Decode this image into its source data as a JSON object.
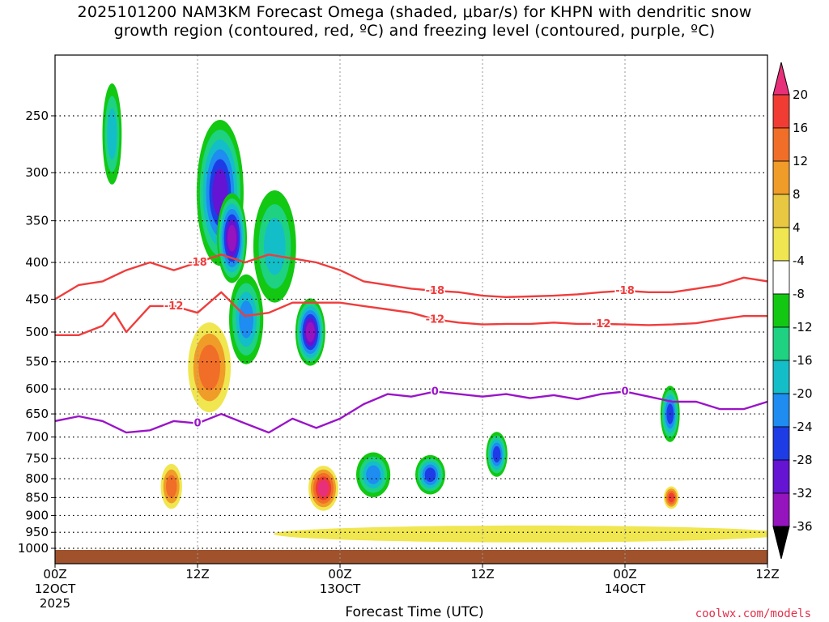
{
  "title_line1": "2025101200 NAM3KM Forecast Omega (shaded, μbar/s) for KHPN with dendritic snow",
  "title_line2": "growth region (contoured, red, ºC) and freezing level (contoured, purple, ºC)",
  "xlabel": "Forecast Time (UTC)",
  "credit": "coolwx.com/models",
  "chart_data": {
    "type": "heatmap",
    "title": "2025101200 NAM3KM Forecast Omega (shaded, μbar/s) for KHPN with dendritic snow growth region (contoured, red, ºC) and freezing level (contoured, purple, ºC)",
    "xlabel": "Forecast Time (UTC)",
    "ylabel": "",
    "x_unit": "forecast hour",
    "xlim": [
      0,
      60
    ],
    "y_unit": "hPa",
    "ylim": [
      1000,
      200
    ],
    "y_scale": "log",
    "x_ticks": [
      {
        "x": 0,
        "label": "00Z",
        "sub": [
          "12OCT",
          "2025"
        ]
      },
      {
        "x": 12,
        "label": "12Z",
        "sub": []
      },
      {
        "x": 24,
        "label": "00Z",
        "sub": [
          "13OCT"
        ]
      },
      {
        "x": 36,
        "label": "12Z",
        "sub": []
      },
      {
        "x": 48,
        "label": "00Z",
        "sub": [
          "14OCT"
        ]
      },
      {
        "x": 60,
        "label": "12Z",
        "sub": []
      }
    ],
    "y_ticks": [
      250,
      300,
      350,
      400,
      450,
      500,
      550,
      600,
      650,
      700,
      750,
      800,
      850,
      900,
      950,
      1000
    ],
    "grid": true,
    "colorbar": {
      "labels": [
        "20",
        "16",
        "12",
        "8",
        "4",
        "-4",
        "-8",
        "-12",
        "-16",
        "-20",
        "-24",
        "-28",
        "-32",
        "-36"
      ],
      "colors": [
        "#e8307a",
        "#f03c32",
        "#f06e28",
        "#f09c28",
        "#e8c840",
        "#f0e650",
        "#ffffff",
        "#12c812",
        "#1ed282",
        "#14bec8",
        "#1e8cf0",
        "#1e3ce6",
        "#6414d2",
        "#9614be",
        "#a0a0a0",
        "#000000"
      ]
    },
    "omega_features": [
      {
        "t": 4.8,
        "p": 265,
        "dt": 0.45,
        "dp_log": 0.09,
        "value": -12
      },
      {
        "t": 13.9,
        "p": 320,
        "dt": 1.1,
        "dp_log": 0.13,
        "value": -24
      },
      {
        "t": 14.9,
        "p": 370,
        "dt": 0.7,
        "dp_log": 0.08,
        "value": -28
      },
      {
        "t": 16.1,
        "p": 480,
        "dt": 0.8,
        "dp_log": 0.08,
        "value": -16
      },
      {
        "t": 21.5,
        "p": 500,
        "dt": 0.7,
        "dp_log": 0.06,
        "value": -28
      },
      {
        "t": 18.5,
        "p": 380,
        "dt": 1.0,
        "dp_log": 0.1,
        "value": -12
      },
      {
        "t": 26.8,
        "p": 790,
        "dt": 0.8,
        "dp_log": 0.04,
        "value": -16
      },
      {
        "t": 31.6,
        "p": 790,
        "dt": 0.7,
        "dp_log": 0.035,
        "value": -20
      },
      {
        "t": 37.2,
        "p": 740,
        "dt": 0.5,
        "dp_log": 0.04,
        "value": -20
      },
      {
        "t": 51.8,
        "p": 650,
        "dt": 0.45,
        "dp_log": 0.05,
        "value": -20
      },
      {
        "t": 9.8,
        "p": 820,
        "dt": 0.5,
        "dp_log": 0.04,
        "value": 12
      },
      {
        "t": 22.6,
        "p": 825,
        "dt": 0.7,
        "dp_log": 0.04,
        "value": 20
      },
      {
        "t": 51.9,
        "p": 850,
        "dt": 0.35,
        "dp_log": 0.02,
        "value": 16
      },
      {
        "t": 13.0,
        "p": 560,
        "dt": 1.0,
        "dp_log": 0.08,
        "value": 12
      },
      {
        "t": 40.0,
        "p": 955,
        "dt": 12.0,
        "dp_log": 0.015,
        "value": 4
      }
    ],
    "series": [
      {
        "name": "-18",
        "color": "#f03c3c",
        "x": [
          0,
          2,
          4,
          6,
          8,
          10,
          12,
          14,
          16,
          18,
          20,
          22,
          24,
          26,
          28,
          30,
          32,
          34,
          36,
          38,
          40,
          42,
          44,
          46,
          48,
          50,
          52,
          54,
          56,
          58,
          60
        ],
        "y": [
          450,
          430,
          425,
          410,
          400,
          410,
          400,
          390,
          400,
          390,
          395,
          400,
          410,
          425,
          430,
          435,
          438,
          440,
          445,
          447,
          446,
          445,
          443,
          440,
          438,
          440,
          440,
          435,
          430,
          420,
          425
        ]
      },
      {
        "name": "-12",
        "color": "#f03c3c",
        "x": [
          0,
          2,
          4,
          5,
          6,
          8,
          10,
          12,
          14,
          16,
          18,
          20,
          22,
          24,
          26,
          28,
          30,
          32,
          34,
          36,
          38,
          40,
          42,
          44,
          46,
          48,
          50,
          52,
          54,
          56,
          58,
          60
        ],
        "y": [
          505,
          505,
          490,
          470,
          500,
          460,
          460,
          470,
          440,
          475,
          470,
          455,
          455,
          455,
          460,
          465,
          470,
          480,
          485,
          488,
          487,
          487,
          485,
          487,
          487,
          488,
          489,
          488,
          486,
          480,
          475,
          475
        ]
      },
      {
        "name": "0",
        "color": "#9a14c8",
        "x": [
          0,
          2,
          4,
          6,
          8,
          10,
          12,
          14,
          16,
          18,
          20,
          22,
          24,
          26,
          28,
          30,
          32,
          34,
          36,
          38,
          40,
          42,
          44,
          46,
          48,
          50,
          52,
          54,
          56,
          58,
          60
        ],
        "y": [
          665,
          655,
          665,
          690,
          685,
          665,
          670,
          650,
          670,
          690,
          660,
          680,
          660,
          630,
          610,
          615,
          605,
          610,
          615,
          610,
          618,
          612,
          620,
          610,
          605,
          615,
          625,
          625,
          640,
          640,
          625
        ]
      }
    ]
  }
}
